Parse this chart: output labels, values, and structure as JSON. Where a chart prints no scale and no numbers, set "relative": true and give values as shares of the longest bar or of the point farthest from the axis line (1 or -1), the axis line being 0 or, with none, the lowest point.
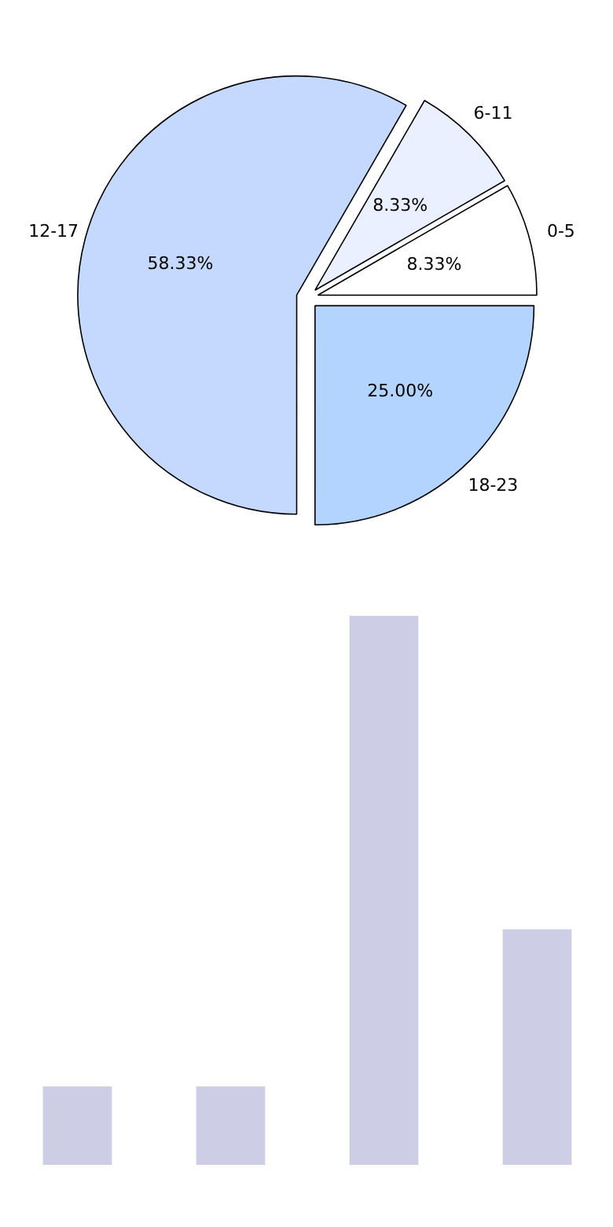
{
  "chart_data": [
    {
      "type": "pie",
      "categories": [
        "0-5",
        "6-11",
        "12-17",
        "18-23"
      ],
      "values": [
        8.33,
        8.33,
        58.33,
        25.0
      ],
      "value_labels": [
        "8.33%",
        "8.33%",
        "58.33%",
        "25.00%"
      ],
      "colors": [
        "#ffffff",
        "#eaf0ff",
        "#c5d9ff",
        "#b3d4ff"
      ]
    },
    {
      "type": "bar",
      "relative": true,
      "categories": [
        null,
        null,
        null,
        null
      ],
      "values": [
        0.143,
        0.143,
        1,
        0.429
      ],
      "color": "#cdcde6"
    }
  ]
}
